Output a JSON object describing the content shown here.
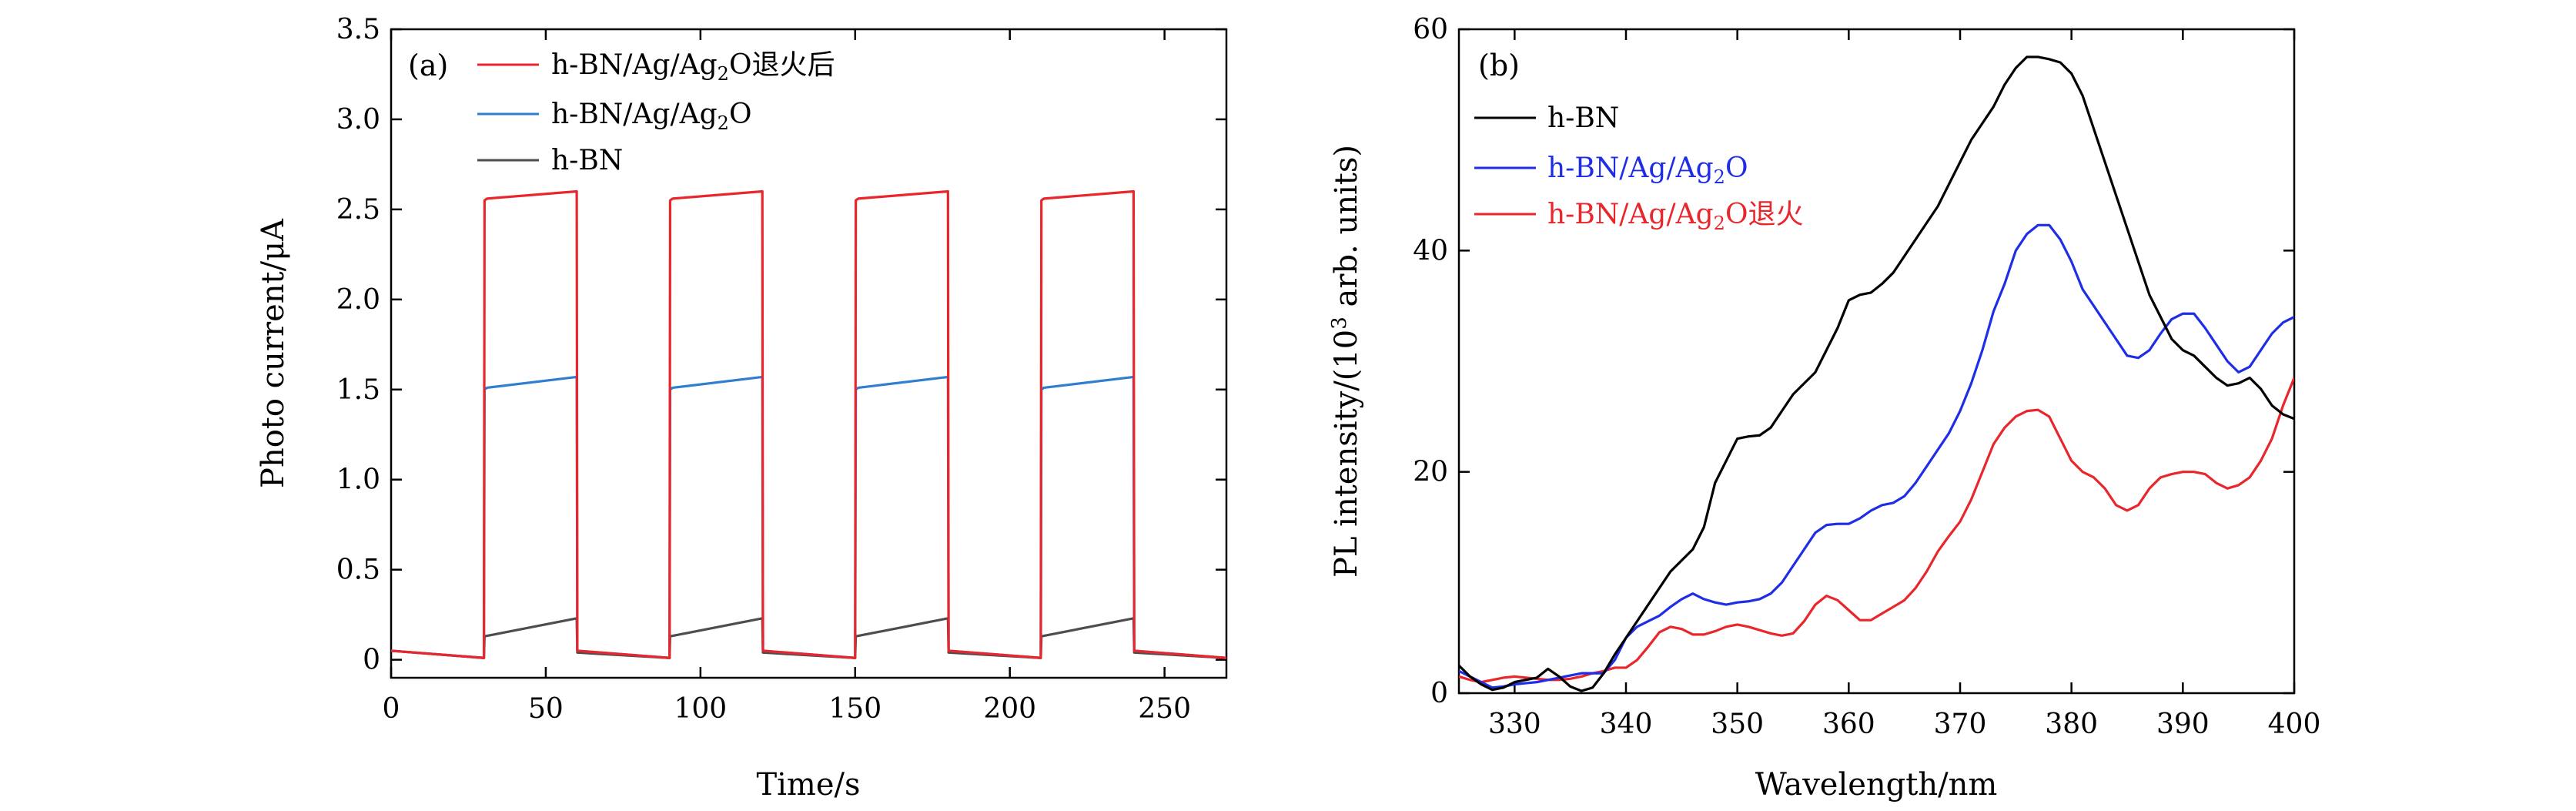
{
  "chart_data": [
    {
      "type": "line",
      "panel_label": "(a)",
      "xlabel": "Time/s",
      "ylabel": "Photo current/μA",
      "xlim": [
        0,
        270
      ],
      "ylim": [
        -0.1,
        3.5
      ],
      "xticks": [
        0,
        50,
        100,
        150,
        200,
        250
      ],
      "yticks": [
        0,
        0.5,
        1.0,
        1.5,
        2.0,
        2.5,
        3.0,
        3.5
      ],
      "ytick_labels": [
        "0",
        "0.5",
        "1.0",
        "1.5",
        "2.0",
        "2.5",
        "3.0",
        "3.5"
      ],
      "legend_position": "top-left",
      "series": [
        {
          "name": "h-BN/Ag/Ag2O退火后",
          "color": "#e8262b",
          "x": [
            0,
            30,
            30.2,
            31,
            60,
            60.2,
            90,
            90.2,
            91,
            120,
            120.2,
            150,
            150.2,
            151,
            180,
            180.2,
            210,
            210.2,
            211,
            240,
            240.2,
            270
          ],
          "y": [
            0.05,
            0.01,
            2.55,
            2.56,
            2.6,
            0.05,
            0.01,
            2.55,
            2.56,
            2.6,
            0.05,
            0.01,
            2.55,
            2.56,
            2.6,
            0.05,
            0.01,
            2.55,
            2.56,
            2.6,
            0.05,
            0.01
          ]
        },
        {
          "name": "h-BN/Ag/Ag2O",
          "color": "#2f7fd1",
          "x": [
            0,
            30,
            30.2,
            31,
            60,
            60.2,
            90,
            90.2,
            91,
            120,
            120.2,
            150,
            150.2,
            151,
            180,
            180.2,
            210,
            210.2,
            211,
            240,
            240.2,
            270
          ],
          "y": [
            0.05,
            0.01,
            1.5,
            1.51,
            1.57,
            0.05,
            0.01,
            1.5,
            1.51,
            1.57,
            0.05,
            0.01,
            1.5,
            1.51,
            1.57,
            0.05,
            0.01,
            1.5,
            1.51,
            1.57,
            0.05,
            0.01
          ]
        },
        {
          "name": "h-BN",
          "color": "#4d4d4d",
          "x": [
            0,
            30,
            30.2,
            60,
            60.2,
            90,
            90.2,
            120,
            120.2,
            150,
            150.2,
            180,
            180.2,
            210,
            210.2,
            240,
            240.2,
            270
          ],
          "y": [
            0.05,
            0.01,
            0.13,
            0.23,
            0.04,
            0.01,
            0.13,
            0.23,
            0.04,
            0.01,
            0.13,
            0.23,
            0.04,
            0.01,
            0.13,
            0.23,
            0.04,
            0.01
          ]
        }
      ]
    },
    {
      "type": "line",
      "panel_label": "(b)",
      "xlabel": "Wavelength/nm",
      "ylabel": "PL intensity/(10³ arb. units)",
      "xlim": [
        325,
        400
      ],
      "ylim": [
        0,
        60
      ],
      "xticks": [
        330,
        340,
        350,
        360,
        370,
        380,
        390,
        400
      ],
      "yticks": [
        0,
        20,
        40,
        60
      ],
      "legend_position": "top-left",
      "series": [
        {
          "name": "h-BN",
          "color": "#000000",
          "x": [
            325,
            326,
            327,
            328,
            329,
            330,
            331,
            332,
            333,
            334,
            335,
            336,
            337,
            338,
            339,
            340,
            341,
            342,
            343,
            344,
            345,
            346,
            347,
            348,
            349,
            350,
            351,
            352,
            353,
            354,
            355,
            356,
            357,
            358,
            359,
            360,
            361,
            362,
            363,
            364,
            365,
            366,
            367,
            368,
            369,
            370,
            371,
            372,
            373,
            374,
            375,
            376,
            377,
            378,
            379,
            380,
            381,
            382,
            383,
            384,
            385,
            386,
            387,
            388,
            389,
            390,
            391,
            392,
            393,
            394,
            395,
            396,
            397,
            398,
            399,
            400
          ],
          "y": [
            2.5,
            1.5,
            0.8,
            0.3,
            0.5,
            1.0,
            1.2,
            1.4,
            2.2,
            1.5,
            0.6,
            0.2,
            0.5,
            1.8,
            3.5,
            5.0,
            6.5,
            8.0,
            9.5,
            11.0,
            12.0,
            13.0,
            15.0,
            19.0,
            21.0,
            23.0,
            23.2,
            23.3,
            24.0,
            25.5,
            27.0,
            28.0,
            29.0,
            31.0,
            33.0,
            35.5,
            36.0,
            36.2,
            37.0,
            38.0,
            39.5,
            41.0,
            42.5,
            44.0,
            46.0,
            48.0,
            50.0,
            51.5,
            53.0,
            55.0,
            56.5,
            57.5,
            57.5,
            57.3,
            57.0,
            56.0,
            54.0,
            51.0,
            48.0,
            45.0,
            42.0,
            39.0,
            36.0,
            34.0,
            32.0,
            31.0,
            30.5,
            29.5,
            28.5,
            27.8,
            28.0,
            28.5,
            27.5,
            26.0,
            25.2,
            24.8
          ]
        },
        {
          "name": "h-BN/Ag/Ag2O",
          "color": "#1f2ee6",
          "x": [
            325,
            326,
            327,
            328,
            329,
            330,
            331,
            332,
            333,
            334,
            335,
            336,
            337,
            338,
            339,
            340,
            341,
            342,
            343,
            344,
            345,
            346,
            347,
            348,
            349,
            350,
            351,
            352,
            353,
            354,
            355,
            356,
            357,
            358,
            359,
            360,
            361,
            362,
            363,
            364,
            365,
            366,
            367,
            368,
            369,
            370,
            371,
            372,
            373,
            374,
            375,
            376,
            377,
            378,
            379,
            380,
            381,
            382,
            383,
            384,
            385,
            386,
            387,
            388,
            389,
            390,
            391,
            392,
            393,
            394,
            395,
            396,
            397,
            398,
            399,
            400
          ],
          "y": [
            2.0,
            1.5,
            1.0,
            0.5,
            0.6,
            0.8,
            0.9,
            1.0,
            1.2,
            1.4,
            1.6,
            1.8,
            1.8,
            1.8,
            3.0,
            5.0,
            6.0,
            6.5,
            7.0,
            7.8,
            8.5,
            9.0,
            8.5,
            8.2,
            8.0,
            8.2,
            8.3,
            8.5,
            9.0,
            10.0,
            11.5,
            13.0,
            14.5,
            15.2,
            15.3,
            15.3,
            15.8,
            16.5,
            17.0,
            17.2,
            17.8,
            19.0,
            20.5,
            22.0,
            23.5,
            25.5,
            28.0,
            31.0,
            34.5,
            37.0,
            40.0,
            41.5,
            42.3,
            42.3,
            41.0,
            39.0,
            36.5,
            35.0,
            33.5,
            32.0,
            30.5,
            30.3,
            31.0,
            32.5,
            33.8,
            34.3,
            34.3,
            33.0,
            31.5,
            30.0,
            29.0,
            29.5,
            31.0,
            32.5,
            33.5,
            34.0
          ]
        },
        {
          "name": "h-BN/Ag/Ag2O退火",
          "color": "#e8262b",
          "x": [
            325,
            326,
            327,
            328,
            329,
            330,
            331,
            332,
            333,
            334,
            335,
            336,
            337,
            338,
            339,
            340,
            341,
            342,
            343,
            344,
            345,
            346,
            347,
            348,
            349,
            350,
            351,
            352,
            353,
            354,
            355,
            356,
            357,
            358,
            359,
            360,
            361,
            362,
            363,
            364,
            365,
            366,
            367,
            368,
            369,
            370,
            371,
            372,
            373,
            374,
            375,
            376,
            377,
            378,
            379,
            380,
            381,
            382,
            383,
            384,
            385,
            386,
            387,
            388,
            389,
            390,
            391,
            392,
            393,
            394,
            395,
            396,
            397,
            398,
            399,
            400
          ],
          "y": [
            1.5,
            1.2,
            1.0,
            1.2,
            1.4,
            1.5,
            1.4,
            1.3,
            1.2,
            1.2,
            1.3,
            1.5,
            1.8,
            2.0,
            2.3,
            2.3,
            3.0,
            4.2,
            5.5,
            6.0,
            5.8,
            5.3,
            5.3,
            5.6,
            6.0,
            6.2,
            6.0,
            5.7,
            5.4,
            5.2,
            5.4,
            6.5,
            8.0,
            8.8,
            8.4,
            7.5,
            6.6,
            6.6,
            7.2,
            7.8,
            8.4,
            9.5,
            11.0,
            12.8,
            14.2,
            15.5,
            17.5,
            20.0,
            22.5,
            24.0,
            25.0,
            25.5,
            25.6,
            25.0,
            23.0,
            21.0,
            20.0,
            19.5,
            18.5,
            17.0,
            16.5,
            17.0,
            18.5,
            19.5,
            19.8,
            20.0,
            20.0,
            19.8,
            19.0,
            18.5,
            18.8,
            19.5,
            21.0,
            23.0,
            26.0,
            28.5
          ]
        }
      ]
    }
  ],
  "legend_a": [
    "h-BN/Ag/Ag",
    "2",
    "O退火后",
    "h-BN/Ag/Ag",
    "2",
    "O",
    "h-BN"
  ],
  "legend_b": [
    "h-BN",
    "h-BN/Ag/Ag",
    "2",
    "O",
    "h-BN/Ag/Ag",
    "2",
    "O退火"
  ],
  "ylabel_b_parts": [
    "PL intensity/(10",
    "3",
    " arb. units)"
  ]
}
